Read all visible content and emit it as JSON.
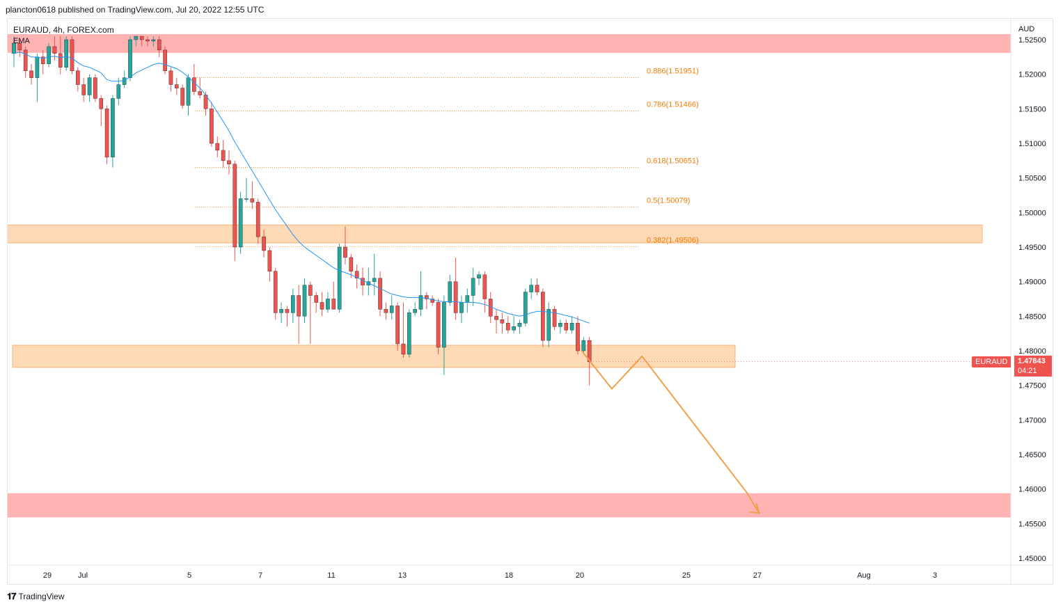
{
  "header": {
    "publisher_line": "plancton0618 published on TradingView.com, Jul 20, 2022 12:55 UTC"
  },
  "legend": {
    "symbol_line": "EURAUD, 4h, FOREX.com",
    "indicator": "EMA"
  },
  "footer": {
    "brand": "TradingView",
    "logo_icon": "tradingview-logo-icon"
  },
  "current_price": {
    "symbol": "EURAUD",
    "price": "1.47843",
    "countdown": "04:21"
  },
  "colors": {
    "up": "#26a69a",
    "down": "#ef5350",
    "ema": "#2196f3",
    "fib": "#f57c00",
    "supply_zone": "#ffb3b3",
    "demand_zone": "#fdd9b5",
    "projection": "#f0a04b"
  },
  "chart_data": {
    "type": "candlestick",
    "y_axis": {
      "unit_label": "AUD",
      "ticks": [
        "1.52500",
        "1.52000",
        "1.51500",
        "1.51000",
        "1.50500",
        "1.50000",
        "1.49500",
        "1.49000",
        "1.48500",
        "1.48000",
        "1.47500",
        "1.47000",
        "1.46500",
        "1.46000",
        "1.45500",
        "1.45000"
      ],
      "range": [
        1.4485,
        1.5255
      ]
    },
    "x_axis": {
      "ticks": [
        {
          "label": "29",
          "day": 1
        },
        {
          "label": "Jul",
          "day": 2
        },
        {
          "label": "5",
          "day": 5
        },
        {
          "label": "7",
          "day": 7
        },
        {
          "label": "11",
          "day": 9
        },
        {
          "label": "13",
          "day": 11
        },
        {
          "label": "18",
          "day": 14
        },
        {
          "label": "20",
          "day": 16
        },
        {
          "label": "25",
          "day": 19
        },
        {
          "label": "27",
          "day": 21
        },
        {
          "label": "Aug",
          "day": 24
        },
        {
          "label": "3",
          "day": 26
        }
      ]
    },
    "candles": [
      [
        1.523,
        1.5255,
        1.521,
        1.5245
      ],
      [
        1.5245,
        1.525,
        1.5225,
        1.5235
      ],
      [
        1.5235,
        1.524,
        1.5195,
        1.5205
      ],
      [
        1.5205,
        1.5215,
        1.5185,
        1.5195
      ],
      [
        1.5195,
        1.523,
        1.516,
        1.5225
      ],
      [
        1.5225,
        1.5235,
        1.52,
        1.5215
      ],
      [
        1.5215,
        1.5245,
        1.521,
        1.524
      ],
      [
        1.524,
        1.5255,
        1.522,
        1.523
      ],
      [
        1.523,
        1.5255,
        1.52,
        1.521
      ],
      [
        1.521,
        1.5255,
        1.5205,
        1.525
      ],
      [
        1.525,
        1.5255,
        1.52,
        1.5205
      ],
      [
        1.5205,
        1.521,
        1.5175,
        1.5185
      ],
      [
        1.5185,
        1.5195,
        1.516,
        1.517
      ],
      [
        1.517,
        1.52,
        1.516,
        1.5195
      ],
      [
        1.5195,
        1.52,
        1.516,
        1.5165
      ],
      [
        1.5165,
        1.517,
        1.5125,
        1.515
      ],
      [
        1.515,
        1.5155,
        1.507,
        1.508
      ],
      [
        1.508,
        1.517,
        1.5065,
        1.5165
      ],
      [
        1.5165,
        1.5195,
        1.5155,
        1.5185
      ],
      [
        1.5185,
        1.5205,
        1.518,
        1.5195
      ],
      [
        1.5195,
        1.5255,
        1.519,
        1.525
      ],
      [
        1.525,
        1.5255,
        1.524,
        1.5255
      ],
      [
        1.5255,
        1.5255,
        1.524,
        1.525
      ],
      [
        1.525,
        1.5255,
        1.524,
        1.5248
      ],
      [
        1.5248,
        1.5255,
        1.524,
        1.525
      ],
      [
        1.525,
        1.5255,
        1.5225,
        1.5235
      ],
      [
        1.5235,
        1.524,
        1.52,
        1.5205
      ],
      [
        1.5205,
        1.521,
        1.5175,
        1.5185
      ],
      [
        1.5185,
        1.5195,
        1.517,
        1.518
      ],
      [
        1.518,
        1.5185,
        1.515,
        1.5155
      ],
      [
        1.5155,
        1.52,
        1.514,
        1.5195
      ],
      [
        1.5195,
        1.5215,
        1.517,
        1.5175
      ],
      [
        1.5175,
        1.5195,
        1.5165,
        1.517
      ],
      [
        1.517,
        1.5175,
        1.514,
        1.515
      ],
      [
        1.515,
        1.516,
        1.5095,
        1.51
      ],
      [
        1.51,
        1.511,
        1.508,
        1.509
      ],
      [
        1.509,
        1.5105,
        1.5065,
        1.5075
      ],
      [
        1.5075,
        1.509,
        1.5055,
        1.507
      ],
      [
        1.507,
        1.5075,
        1.493,
        1.495
      ],
      [
        1.495,
        1.503,
        1.494,
        1.502
      ],
      [
        1.502,
        1.505,
        1.5015,
        1.502
      ],
      [
        1.502,
        1.5045,
        1.5005,
        1.5015
      ],
      [
        1.5015,
        1.502,
        1.4955,
        1.4965
      ],
      [
        1.4965,
        1.4975,
        1.4935,
        1.4945
      ],
      [
        1.4945,
        1.495,
        1.49,
        1.4915
      ],
      [
        1.4915,
        1.492,
        1.4845,
        1.4855
      ],
      [
        1.4855,
        1.487,
        1.484,
        1.486
      ],
      [
        1.486,
        1.4865,
        1.4835,
        1.4855
      ],
      [
        1.4855,
        1.489,
        1.484,
        1.488
      ],
      [
        1.488,
        1.4895,
        1.481,
        1.485
      ],
      [
        1.485,
        1.4905,
        1.484,
        1.4895
      ],
      [
        1.4895,
        1.49,
        1.481,
        1.488
      ],
      [
        1.488,
        1.4885,
        1.4855,
        1.487
      ],
      [
        1.487,
        1.4885,
        1.485,
        1.486
      ],
      [
        1.486,
        1.4885,
        1.4855,
        1.4875
      ],
      [
        1.4875,
        1.49,
        1.4865,
        1.486
      ],
      [
        1.486,
        1.4955,
        1.4855,
        1.495
      ],
      [
        1.495,
        1.498,
        1.4925,
        1.4935
      ],
      [
        1.4935,
        1.494,
        1.4905,
        1.4915
      ],
      [
        1.4915,
        1.4925,
        1.489,
        1.4905
      ],
      [
        1.4905,
        1.492,
        1.488,
        1.4895
      ],
      [
        1.4895,
        1.492,
        1.488,
        1.49
      ],
      [
        1.49,
        1.494,
        1.488,
        1.4905
      ],
      [
        1.4905,
        1.4915,
        1.485,
        1.486
      ],
      [
        1.486,
        1.487,
        1.4845,
        1.4855
      ],
      [
        1.4855,
        1.488,
        1.4845,
        1.4865
      ],
      [
        1.4865,
        1.487,
        1.48,
        1.481
      ],
      [
        1.481,
        1.487,
        1.479,
        1.4795
      ],
      [
        1.4795,
        1.486,
        1.479,
        1.4855
      ],
      [
        1.4855,
        1.487,
        1.485,
        1.486
      ],
      [
        1.486,
        1.4915,
        1.485,
        1.488
      ],
      [
        1.488,
        1.4885,
        1.486,
        1.4875
      ],
      [
        1.4875,
        1.488,
        1.4865,
        1.487
      ],
      [
        1.487,
        1.4875,
        1.4795,
        1.4805
      ],
      [
        1.4805,
        1.488,
        1.4765,
        1.487
      ],
      [
        1.487,
        1.491,
        1.4865,
        1.49
      ],
      [
        1.49,
        1.4935,
        1.4845,
        1.4855
      ],
      [
        1.4855,
        1.488,
        1.484,
        1.487
      ],
      [
        1.487,
        1.489,
        1.4855,
        1.488
      ],
      [
        1.488,
        1.492,
        1.4865,
        1.4905
      ],
      [
        1.4905,
        1.4915,
        1.4895,
        1.491
      ],
      [
        1.491,
        1.4915,
        1.4855,
        1.4875
      ],
      [
        1.4875,
        1.4885,
        1.484,
        1.485
      ],
      [
        1.485,
        1.486,
        1.4825,
        1.4845
      ],
      [
        1.4845,
        1.4855,
        1.4825,
        1.484
      ],
      [
        1.484,
        1.485,
        1.4825,
        1.483
      ],
      [
        1.483,
        1.485,
        1.4825,
        1.4835
      ],
      [
        1.4835,
        1.4845,
        1.4825,
        1.484
      ],
      [
        1.484,
        1.489,
        1.4835,
        1.4885
      ],
      [
        1.4885,
        1.4905,
        1.4875,
        1.4895
      ],
      [
        1.4895,
        1.4905,
        1.488,
        1.4885
      ],
      [
        1.4885,
        1.489,
        1.4805,
        1.4815
      ],
      [
        1.4815,
        1.487,
        1.4805,
        1.486
      ],
      [
        1.486,
        1.4865,
        1.483,
        1.4835
      ],
      [
        1.4835,
        1.4845,
        1.4825,
        1.484
      ],
      [
        1.484,
        1.4845,
        1.4825,
        1.483
      ],
      [
        1.483,
        1.485,
        1.4825,
        1.484
      ],
      [
        1.484,
        1.485,
        1.4795,
        1.48
      ],
      [
        1.48,
        1.482,
        1.4795,
        1.4815
      ],
      [
        1.4815,
        1.482,
        1.475,
        1.4784
      ]
    ],
    "ema_series": [
      1.523,
      1.5232,
      1.5229,
      1.5225,
      1.5225,
      1.5223,
      1.5225,
      1.5226,
      1.5224,
      1.5226,
      1.5223,
      1.5217,
      1.5212,
      1.521,
      1.5206,
      1.5202,
      1.5192,
      1.519,
      1.519,
      1.5191,
      1.5196,
      1.5202,
      1.5206,
      1.521,
      1.5214,
      1.5216,
      1.5214,
      1.5211,
      1.5208,
      1.5203,
      1.5196,
      1.5188,
      1.518,
      1.517,
      1.5158,
      1.5145,
      1.5132,
      1.5118,
      1.5102,
      1.5088,
      1.5074,
      1.506,
      1.5046,
      1.5032,
      1.5018,
      1.5004,
      1.4992,
      1.498,
      1.4968,
      1.4958,
      1.495,
      1.4944,
      1.4938,
      1.4932,
      1.4926,
      1.492,
      1.4916,
      1.4913,
      1.491,
      1.4906,
      1.4902,
      1.4898,
      1.4894,
      1.489,
      1.4886,
      1.4882,
      1.488,
      1.4878,
      1.4877,
      1.4877,
      1.4877,
      1.4876,
      1.4874,
      1.4872,
      1.4871,
      1.4871,
      1.4871,
      1.487,
      1.487,
      1.487,
      1.4869,
      1.4867,
      1.4864,
      1.486,
      1.4857,
      1.4854,
      1.4852,
      1.485,
      1.4852,
      1.4855,
      1.4857,
      1.4857,
      1.4856,
      1.4855,
      1.4853,
      1.4851,
      1.4849,
      1.4846,
      1.4843,
      1.484
    ],
    "fibonacci_levels": [
      {
        "label": "0.886(1.51951)",
        "value": 1.51951
      },
      {
        "label": "0.786(1.51466)",
        "value": 1.51466
      },
      {
        "label": "0.618(1.50651)",
        "value": 1.50651
      },
      {
        "label": "0.5(1.50079)",
        "value": 1.50079
      },
      {
        "label": "0.382(1.49506)",
        "value": 1.49506
      }
    ],
    "zones": [
      {
        "kind": "supply",
        "top": 1.5255,
        "bottom": 1.5231
      },
      {
        "kind": "resistance",
        "top": 1.4982,
        "bottom": 1.4956
      },
      {
        "kind": "support",
        "top": 1.4808,
        "bottom": 1.4776
      },
      {
        "kind": "target",
        "top": 1.4594,
        "bottom": 1.4559
      }
    ],
    "projection_path": [
      {
        "day": 16.05,
        "price": 1.48
      },
      {
        "day": 16.9,
        "price": 1.4745
      },
      {
        "day": 17.75,
        "price": 1.4792
      },
      {
        "day": 20.7,
        "price": 1.4595
      },
      {
        "day": 21.05,
        "price": 1.4565
      }
    ]
  }
}
